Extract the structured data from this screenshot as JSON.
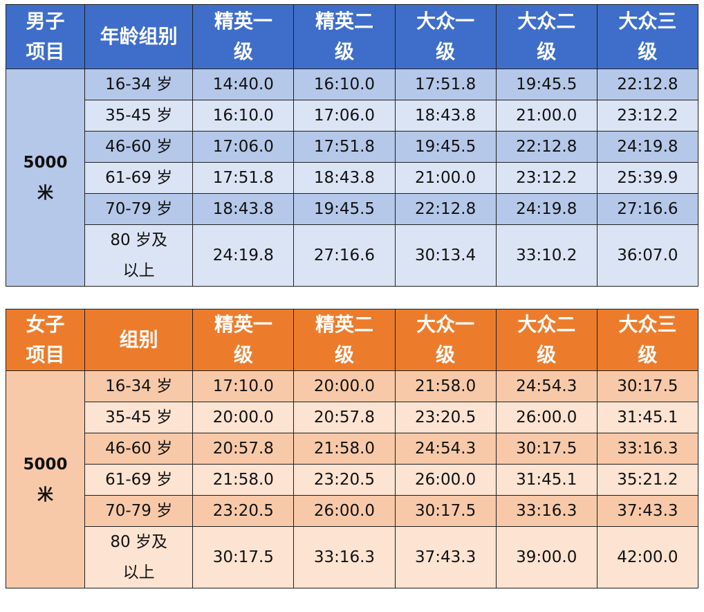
{
  "men": {
    "header": {
      "project": "男子\n项目",
      "group": "年龄组别",
      "levels": [
        "精英一\n级",
        "精英二\n级",
        "大众一\n级",
        "大众二\n级",
        "大众三\n级"
      ]
    },
    "event": "5000\n米",
    "rows": [
      {
        "age": "16-34 岁",
        "times": [
          "14:40.0",
          "16:10.0",
          "17:51.8",
          "19:45.5",
          "22:12.8"
        ]
      },
      {
        "age": "35-45 岁",
        "times": [
          "16:10.0",
          "17:06.0",
          "18:43.8",
          "21:00.0",
          "23:12.2"
        ]
      },
      {
        "age": "46-60 岁",
        "times": [
          "17:06.0",
          "17:51.8",
          "19:45.5",
          "22:12.8",
          "24:19.8"
        ]
      },
      {
        "age": "61-69 岁",
        "times": [
          "17:51.8",
          "18:43.8",
          "21:00.0",
          "23:12.2",
          "25:39.9"
        ]
      },
      {
        "age": "70-79 岁",
        "times": [
          "18:43.8",
          "19:45.5",
          "22:12.8",
          "24:19.8",
          "27:16.6"
        ]
      },
      {
        "age": "80 岁及\n以上",
        "times": [
          "24:19.8",
          "27:16.6",
          "30:13.4",
          "33:10.2",
          "36:07.0"
        ]
      }
    ]
  },
  "women": {
    "header": {
      "project": "女子\n项目",
      "group": "组别",
      "levels": [
        "精英一\n级",
        "精英二\n级",
        "大众一\n级",
        "大众二\n级",
        "大众三\n级"
      ]
    },
    "event": "5000\n米",
    "rows": [
      {
        "age": "16-34 岁",
        "times": [
          "17:10.0",
          "20:00.0",
          "21:58.0",
          "24:54.3",
          "30:17.5"
        ]
      },
      {
        "age": "35-45 岁",
        "times": [
          "20:00.0",
          "20:57.8",
          "23:20.5",
          "26:00.0",
          "31:45.1"
        ]
      },
      {
        "age": "46-60 岁",
        "times": [
          "20:57.8",
          "21:58.0",
          "24:54.3",
          "30:17.5",
          "33:16.3"
        ]
      },
      {
        "age": "61-69 岁",
        "times": [
          "21:58.0",
          "23:20.5",
          "26:00.0",
          "31:45.1",
          "35:21.2"
        ]
      },
      {
        "age": "70-79 岁",
        "times": [
          "23:20.5",
          "26:00.0",
          "30:17.5",
          "33:16.3",
          "37:43.3"
        ]
      },
      {
        "age": "80 岁及\n以上",
        "times": [
          "30:17.5",
          "33:16.3",
          "37:43.3",
          "39:00.0",
          "42:00.0"
        ]
      }
    ]
  }
}
